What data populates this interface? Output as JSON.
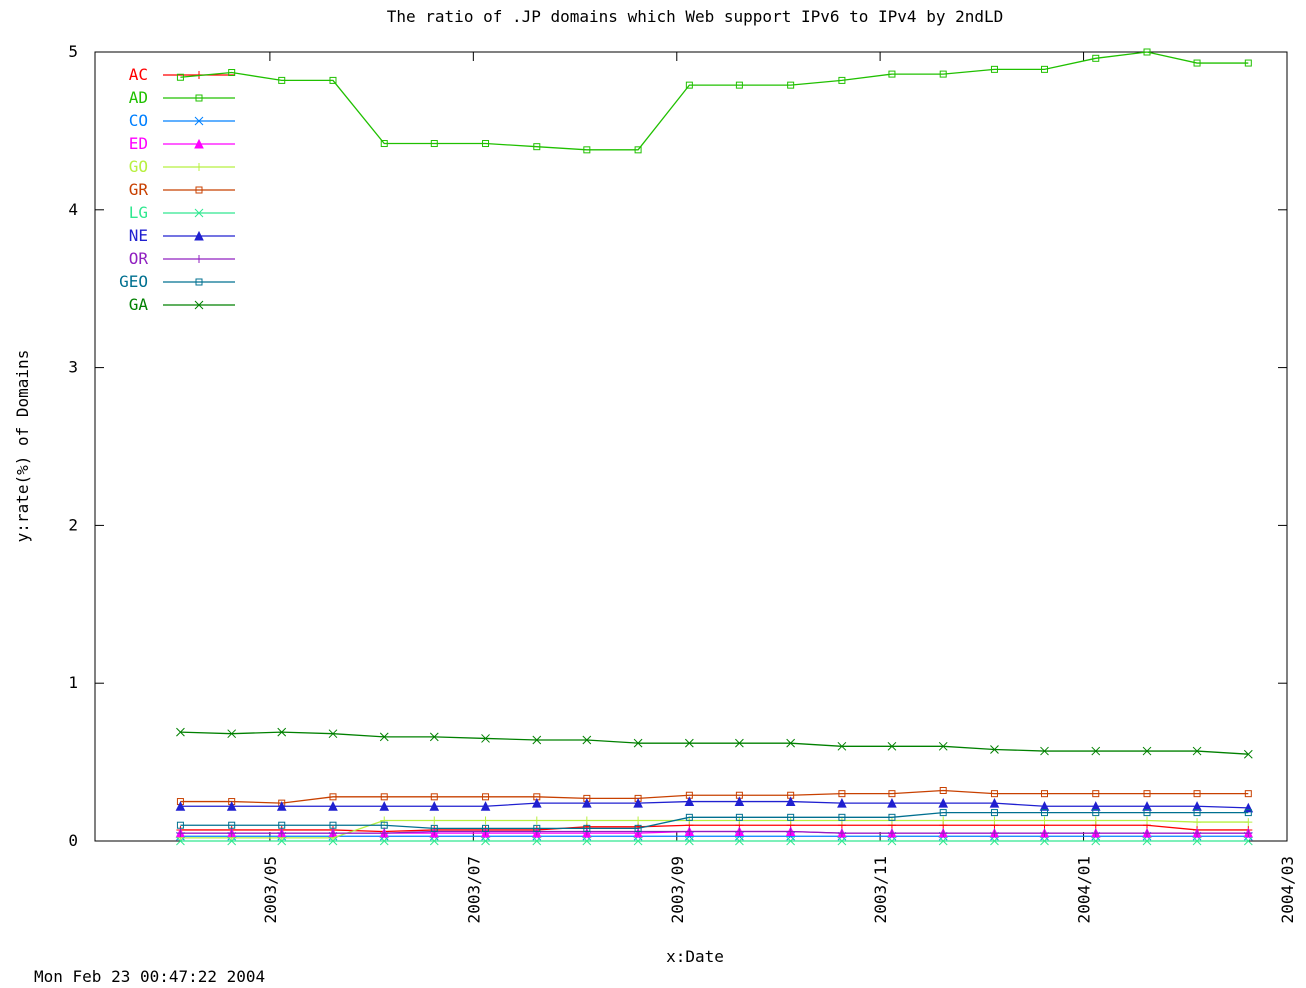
{
  "chart_data": {
    "type": "line",
    "title": "The ratio of .JP domains which Web support IPv6 to IPv4 by 2ndLD",
    "x_label": "x:Date",
    "y_label": "y:rate(%) of Domains",
    "footer": "Mon Feb 23 00:47:22 2004",
    "xlim": [
      2003.19,
      2004.1667
    ],
    "xticks": [
      {
        "value": 2003.3333,
        "label": "2003/05"
      },
      {
        "value": 2003.5,
        "label": "2003/07"
      },
      {
        "value": 2003.6667,
        "label": "2003/09"
      },
      {
        "value": 2003.8333,
        "label": "2003/11"
      },
      {
        "value": 2004.0,
        "label": "2004/01"
      },
      {
        "value": 2004.1667,
        "label": "2004/03"
      }
    ],
    "ylim": [
      0,
      5
    ],
    "yticks": [
      0,
      1,
      2,
      3,
      4,
      5
    ],
    "legend": "top-left",
    "x": [
      2003.26,
      2003.302,
      2003.343,
      2003.385,
      2003.427,
      2003.468,
      2003.51,
      2003.552,
      2003.593,
      2003.635,
      2003.677,
      2003.718,
      2003.76,
      2003.802,
      2003.843,
      2003.885,
      2003.927,
      2003.968,
      2004.01,
      2004.052,
      2004.093,
      2004.135
    ],
    "series": [
      {
        "name": "AC",
        "color": "#ff0000",
        "values": [
          0.07,
          0.07,
          0.07,
          0.07,
          0.06,
          0.07,
          0.07,
          0.07,
          0.09,
          0.09,
          0.1,
          0.1,
          0.1,
          0.1,
          0.1,
          0.1,
          0.1,
          0.1,
          0.1,
          0.1,
          0.07,
          0.07
        ]
      },
      {
        "name": "AD",
        "color": "#20c000",
        "values": [
          4.84,
          4.87,
          4.82,
          4.82,
          4.42,
          4.42,
          4.42,
          4.4,
          4.38,
          4.38,
          4.79,
          4.79,
          4.79,
          4.82,
          4.86,
          4.86,
          4.89,
          4.89,
          4.96,
          5.0,
          4.93,
          4.93
        ]
      },
      {
        "name": "CO",
        "color": "#0080ff",
        "values": [
          0.03,
          0.03,
          0.03,
          0.03,
          0.03,
          0.03,
          0.03,
          0.03,
          0.03,
          0.03,
          0.03,
          0.03,
          0.03,
          0.03,
          0.03,
          0.03,
          0.03,
          0.03,
          0.03,
          0.03,
          0.03,
          0.03
        ]
      },
      {
        "name": "ED",
        "color": "#ff00ff",
        "values": [
          0.05,
          0.05,
          0.05,
          0.05,
          0.05,
          0.05,
          0.05,
          0.05,
          0.05,
          0.05,
          0.06,
          0.06,
          0.06,
          0.05,
          0.05,
          0.05,
          0.05,
          0.05,
          0.05,
          0.05,
          0.05,
          0.05
        ]
      },
      {
        "name": "GO",
        "color": "#b8f040",
        "values": [
          0.02,
          0.02,
          0.02,
          0.02,
          0.13,
          0.13,
          0.13,
          0.13,
          0.13,
          0.13,
          0.13,
          0.13,
          0.13,
          0.13,
          0.13,
          0.13,
          0.13,
          0.13,
          0.13,
          0.13,
          0.12,
          0.12
        ]
      },
      {
        "name": "GR",
        "color": "#c84000",
        "values": [
          0.25,
          0.25,
          0.24,
          0.28,
          0.28,
          0.28,
          0.28,
          0.28,
          0.27,
          0.27,
          0.29,
          0.29,
          0.29,
          0.3,
          0.3,
          0.32,
          0.3,
          0.3,
          0.3,
          0.3,
          0.3,
          0.3
        ]
      },
      {
        "name": "LG",
        "color": "#30e890",
        "values": [
          0.0,
          0.0,
          0.0,
          0.0,
          0.0,
          0.0,
          0.0,
          0.0,
          0.0,
          0.0,
          0.0,
          0.0,
          0.0,
          0.0,
          0.0,
          0.0,
          0.0,
          0.0,
          0.0,
          0.0,
          0.0,
          0.0
        ]
      },
      {
        "name": "NE",
        "color": "#2020d0",
        "values": [
          0.22,
          0.22,
          0.22,
          0.22,
          0.22,
          0.22,
          0.22,
          0.24,
          0.24,
          0.24,
          0.25,
          0.25,
          0.25,
          0.24,
          0.24,
          0.24,
          0.24,
          0.22,
          0.22,
          0.22,
          0.22,
          0.21
        ]
      },
      {
        "name": "OR",
        "color": "#9020c0",
        "values": [
          0.05,
          0.05,
          0.05,
          0.05,
          0.05,
          0.06,
          0.06,
          0.06,
          0.06,
          0.06,
          0.06,
          0.06,
          0.06,
          0.05,
          0.05,
          0.05,
          0.05,
          0.05,
          0.05,
          0.05,
          0.05,
          0.05
        ]
      },
      {
        "name": "GEO",
        "color": "#007090",
        "values": [
          0.1,
          0.1,
          0.1,
          0.1,
          0.1,
          0.08,
          0.08,
          0.08,
          0.08,
          0.08,
          0.15,
          0.15,
          0.15,
          0.15,
          0.15,
          0.18,
          0.18,
          0.18,
          0.18,
          0.18,
          0.18,
          0.18
        ]
      },
      {
        "name": "GA",
        "color": "#008000",
        "values": [
          0.69,
          0.68,
          0.69,
          0.68,
          0.66,
          0.66,
          0.65,
          0.64,
          0.64,
          0.62,
          0.62,
          0.62,
          0.62,
          0.6,
          0.6,
          0.6,
          0.58,
          0.57,
          0.57,
          0.57,
          0.57,
          0.55
        ]
      }
    ]
  }
}
